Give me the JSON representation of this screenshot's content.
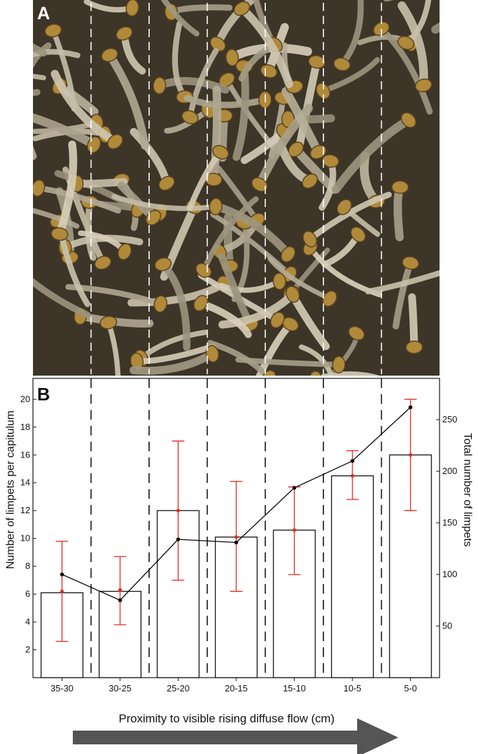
{
  "panel_a": {
    "label": "A"
  },
  "panel_b": {
    "label": "B"
  },
  "chart_data": {
    "type": "bar",
    "categories": [
      "35-30",
      "30-25",
      "25-20",
      "20-15",
      "15-10",
      "10-5",
      "5-0"
    ],
    "series": [
      {
        "values": [
          6.1,
          6.2,
          12.0,
          10.1,
          10.6,
          14.5,
          16.0
        ],
        "means": [
          6.2,
          6.3,
          12.0,
          10.1,
          10.6,
          14.5,
          16.0
        ],
        "error_low": [
          2.6,
          3.8,
          7.0,
          6.2,
          7.4,
          12.8,
          12.0
        ],
        "error_high": [
          9.8,
          8.7,
          17.0,
          14.1,
          13.7,
          16.3,
          20.0
        ],
        "axis": "left",
        "style": "white bars with red error bars"
      },
      {
        "values": [
          100,
          75,
          134,
          131,
          184,
          210,
          262
        ],
        "axis": "right",
        "style": "black line with dot markers"
      }
    ],
    "xlabel": "Proximity to visible rising diffuse flow (cm)",
    "ylabel": "Number of limpets per capitulum",
    "ylabel_right": "Total number of limpets",
    "ylim": [
      0,
      21.5
    ],
    "ylim_right": [
      0,
      290
    ],
    "yticks": [
      2,
      4,
      6,
      8,
      10,
      12,
      14,
      16,
      18,
      20
    ],
    "yticks_right": [
      50,
      100,
      150,
      200,
      250
    ],
    "colors": {
      "bars": "#ffffff",
      "error": "#e0281b",
      "line": "#000000",
      "arrow": "#555555"
    },
    "grid": false,
    "dividers": "dashed vertical lines between categories"
  }
}
